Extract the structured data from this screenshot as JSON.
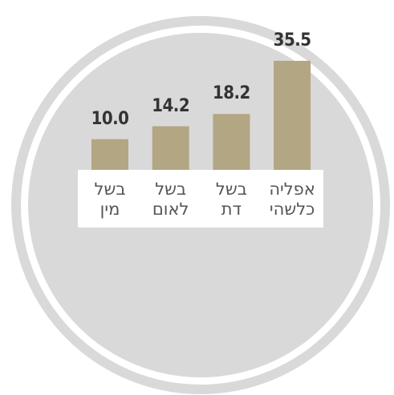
{
  "chart_data": {
    "type": "bar",
    "categories": [
      "בשל מין",
      "בשל לאום",
      "בשל דת",
      "אפליה כלשהי"
    ],
    "values": [
      10.0,
      14.2,
      18.2,
      35.5
    ],
    "value_labels": [
      "10.0",
      "14.2",
      "18.2",
      "35.5"
    ],
    "color": "#b3a683",
    "ylim": [
      0,
      36
    ]
  }
}
